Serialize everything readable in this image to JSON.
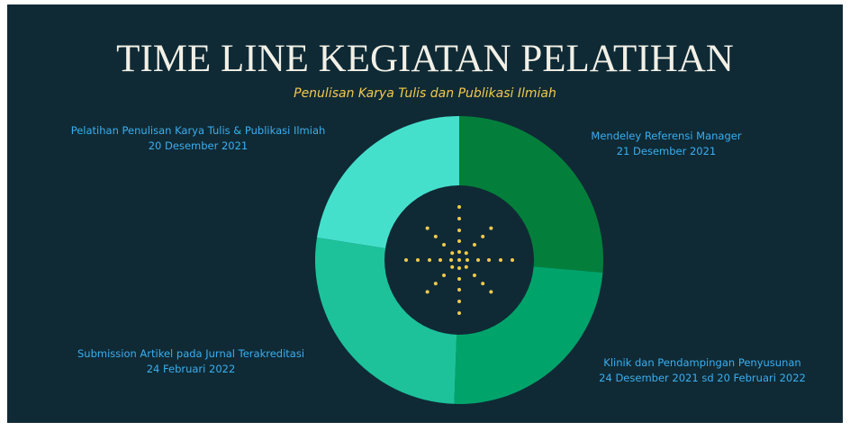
{
  "title": "TIME LINE KEGIATAN PELATIHAN",
  "subtitle": "Penulisan Karya Tulis dan Publikasi Ilmiah",
  "items": [
    {
      "label": "Pelatihan Penulisan Karya Tulis & Publikasi Ilmiah",
      "date": "20 Desember 2021"
    },
    {
      "label": "Mendeley Referensi Manager",
      "date": "21 Desember 2021"
    },
    {
      "label": "Klinik dan Pendampingan Penyusunan",
      "date": "24 Desember 2021 sd 20 Februari 2022"
    },
    {
      "label": "Submission Artikel pada Jurnal Terakreditasi",
      "date": "24 Februari 2022"
    }
  ]
}
